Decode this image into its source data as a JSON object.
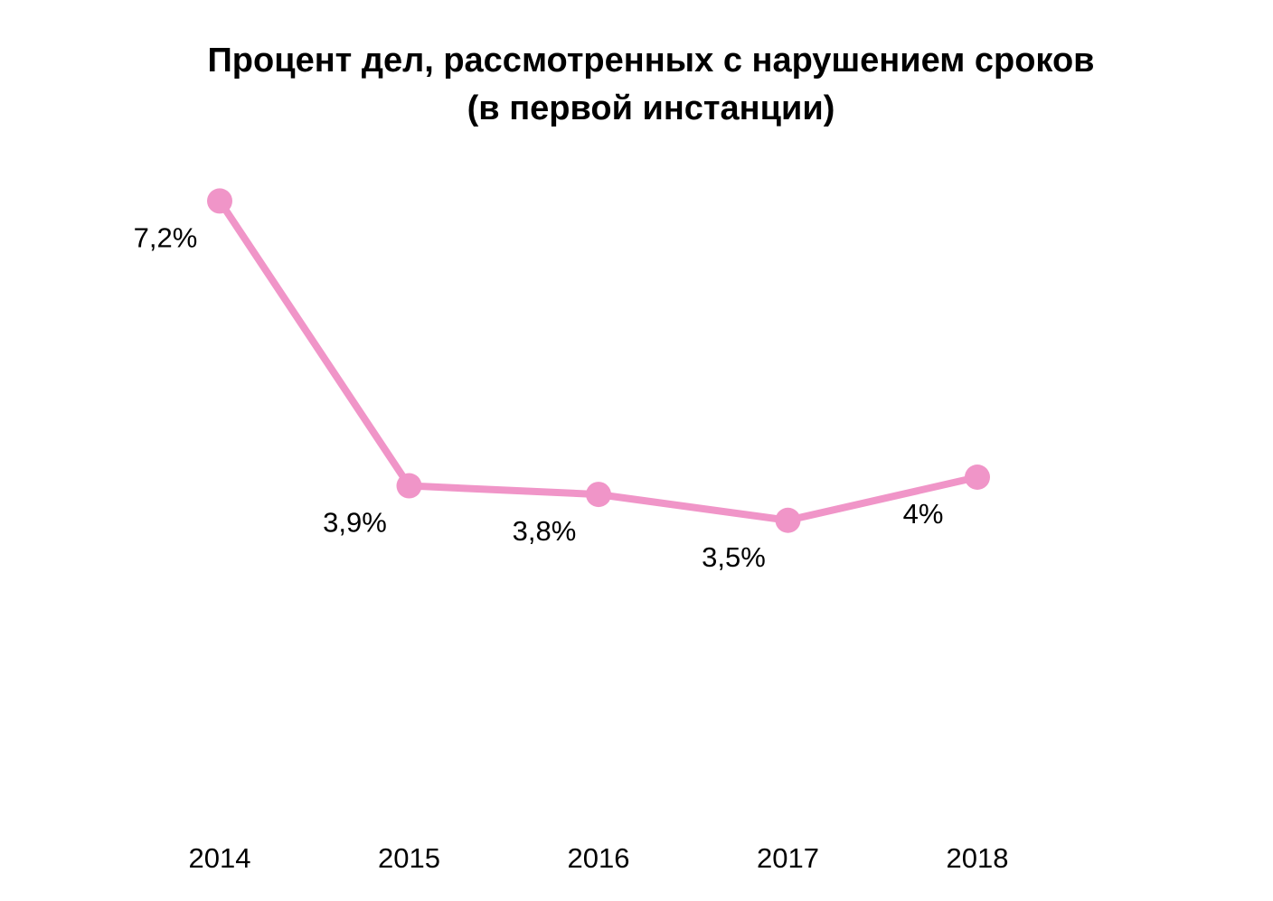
{
  "chart_data": {
    "type": "line",
    "title": "Процент дел, рассмотренных с нарушением сроков",
    "subtitle": "(в первой инстанции)",
    "x": [
      "2014",
      "2015",
      "2016",
      "2017",
      "2018"
    ],
    "series": [
      {
        "name": "Процент дел, рассмотренных с нарушением сроков",
        "values": [
          7.2,
          3.9,
          3.8,
          3.5,
          4.0
        ],
        "labels": [
          "7,2%",
          "3,9%",
          "3,8%",
          "3,5%",
          "4%"
        ],
        "color": "#f095c8"
      }
    ],
    "xlabel": "",
    "ylabel": "",
    "ylim": [
      0,
      9.5
    ],
    "grid": false,
    "legend": "none"
  }
}
